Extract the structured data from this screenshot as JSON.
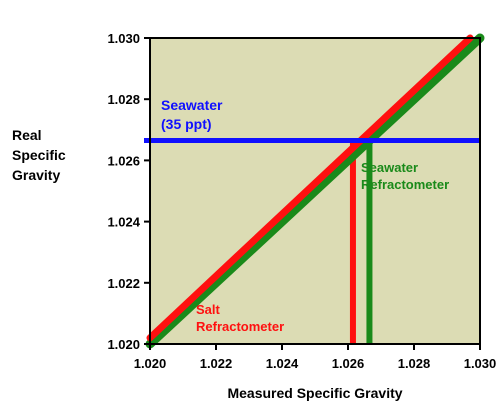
{
  "chart_data": {
    "type": "line",
    "xlabel": "Measured Specific Gravity",
    "ylabel": [
      "Real",
      "Specific",
      "Gravity"
    ],
    "xlim": [
      1.02,
      1.03
    ],
    "ylim": [
      1.02,
      1.03
    ],
    "x_ticks": [
      "1.020",
      "1.022",
      "1.024",
      "1.026",
      "1.028",
      "1.030"
    ],
    "y_ticks": [
      "1.020",
      "1.022",
      "1.024",
      "1.026",
      "1.028",
      "1.030"
    ],
    "grid": false,
    "plot_background": "#dcdcb4",
    "series": [
      {
        "key": "seawater",
        "label_lines": [
          "Seawater",
          "Refractometer"
        ],
        "color": "#1a8a1a",
        "points": [
          [
            1.02,
            1.02
          ],
          [
            1.03,
            1.03
          ]
        ],
        "drop_line_x": 1.02665
      },
      {
        "key": "salt",
        "label_lines": [
          "Salt",
          "Refractometer"
        ],
        "color": "#ff1010",
        "points": [
          [
            1.02,
            1.0202
          ],
          [
            1.0297,
            1.03
          ]
        ],
        "drop_line_x": 1.02615
      }
    ],
    "reference_line": {
      "label_lines": [
        "Seawater",
        "(35 ppt)"
      ],
      "y": 1.02665,
      "color": "#1010ff"
    }
  }
}
